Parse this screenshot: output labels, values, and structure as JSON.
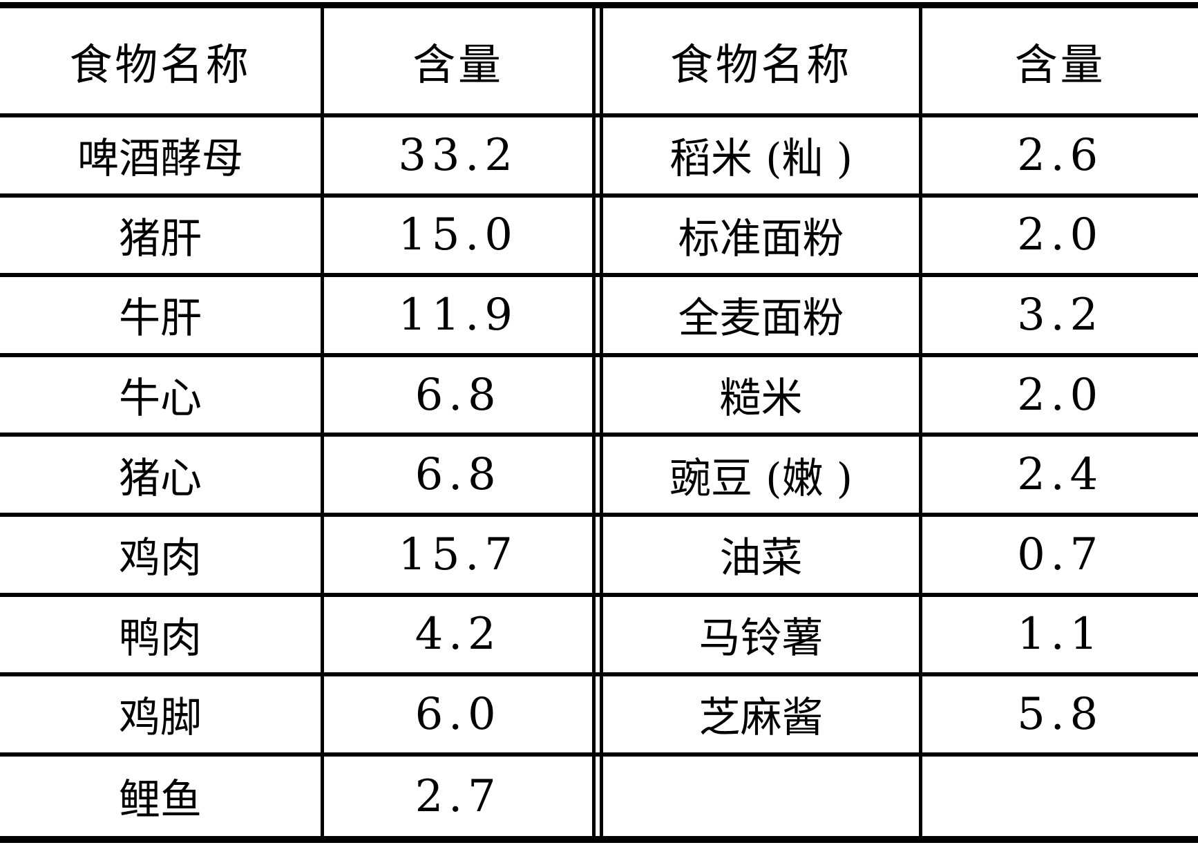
{
  "page": {
    "background": "#ffffff",
    "line_color": "#000000",
    "text_color": "#000000"
  },
  "table": {
    "left": {
      "header": {
        "name": "食物名称",
        "value": "含量"
      },
      "rows": [
        {
          "name": "啤酒酵母",
          "value": "33.2"
        },
        {
          "name": "猪肝",
          "value": "15.0"
        },
        {
          "name": "牛肝",
          "value": "11.9"
        },
        {
          "name": "牛心",
          "value": "6.8"
        },
        {
          "name": "猪心",
          "value": "6.8"
        },
        {
          "name": "鸡肉",
          "value": "15.7"
        },
        {
          "name": "鸭肉",
          "value": "4.2"
        },
        {
          "name": "鸡脚",
          "value": "6.0"
        },
        {
          "name": "鲤鱼",
          "value": "2.7"
        }
      ]
    },
    "right": {
      "header": {
        "name": "食物名称",
        "value": "含量"
      },
      "rows": [
        {
          "name": "稻米 (籼 )",
          "value": "2.6"
        },
        {
          "name": "标准面粉",
          "value": "2.0"
        },
        {
          "name": "全麦面粉",
          "value": "3.2"
        },
        {
          "name": "糙米",
          "value": "2.0"
        },
        {
          "name": "豌豆 (嫩 )",
          "value": "2.4"
        },
        {
          "name": "油菜",
          "value": "0.7"
        },
        {
          "name": "马铃薯",
          "value": "1.1"
        },
        {
          "name": "芝麻酱",
          "value": "5.8"
        },
        {
          "name": "",
          "value": ""
        }
      ]
    }
  }
}
